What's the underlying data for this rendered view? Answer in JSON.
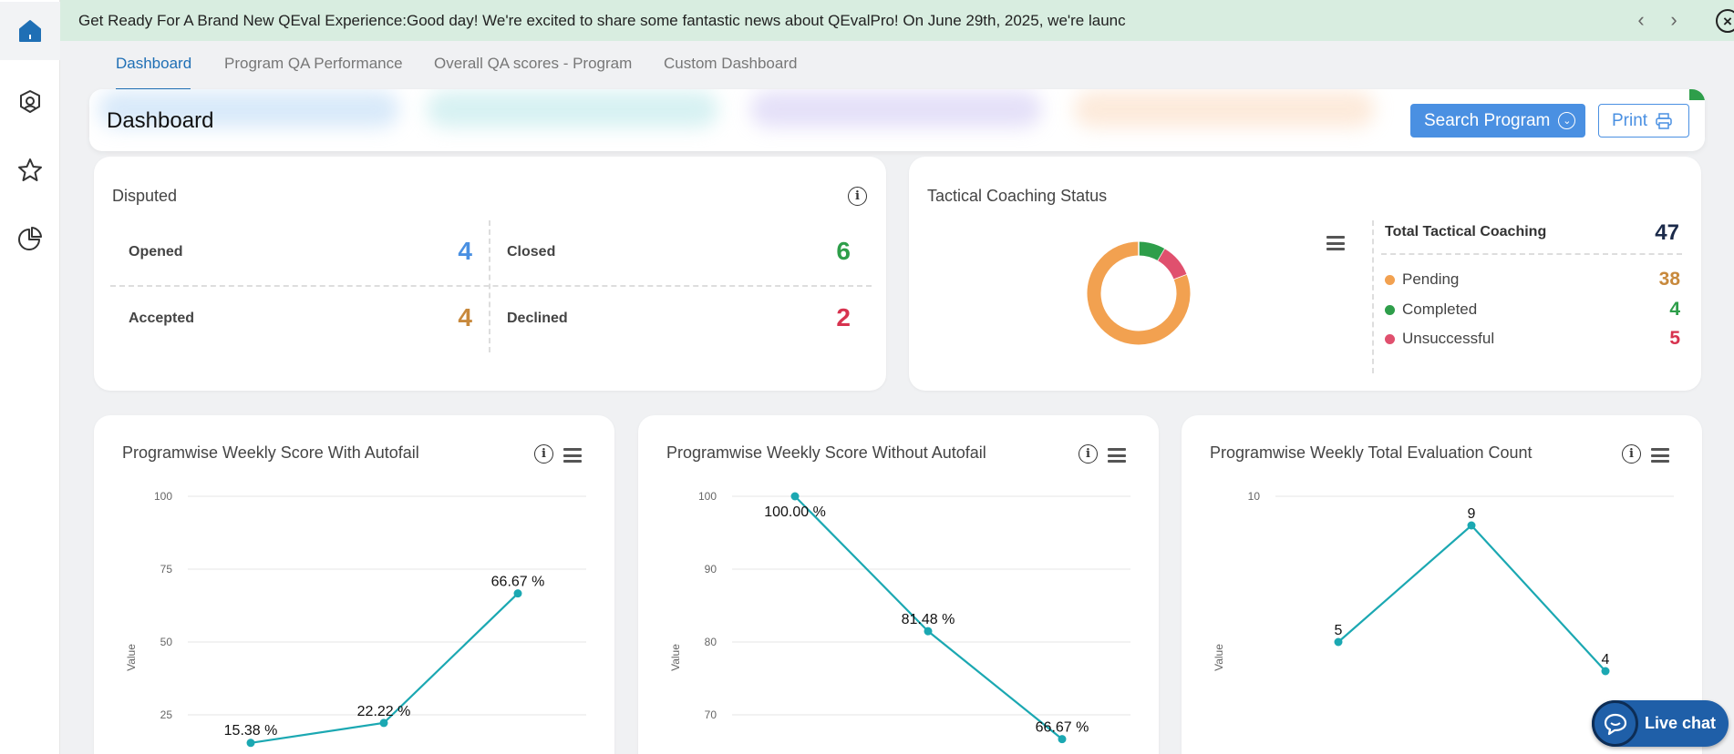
{
  "rail": {
    "items": [
      {
        "name": "home",
        "icon": "home-icon",
        "active": true
      },
      {
        "name": "settings",
        "icon": "gear-badge-icon"
      },
      {
        "name": "favorites",
        "icon": "star-icon"
      },
      {
        "name": "reports",
        "icon": "pie-chart-icon"
      }
    ]
  },
  "banner": {
    "text": "Get Ready For A Brand New QEval Experience:Good day! We're excited to share some fantastic news about QEvalPro! On June 29th, 2025, we're launc",
    "prev": "‹",
    "next": "›",
    "close": "×"
  },
  "tabs": [
    {
      "label": "Dashboard",
      "active": true
    },
    {
      "label": "Program QA Performance"
    },
    {
      "label": "Overall QA scores - Program"
    },
    {
      "label": "Custom Dashboard"
    }
  ],
  "header": {
    "title": "Dashboard",
    "search_label": "Search Program",
    "print_label": "Print"
  },
  "disputed": {
    "title": "Disputed",
    "opened_label": "Opened",
    "opened_value": "4",
    "closed_label": "Closed",
    "closed_value": "6",
    "accepted_label": "Accepted",
    "accepted_value": "4",
    "declined_label": "Declined",
    "declined_value": "2",
    "colors": {
      "opened": "#4a90e2",
      "closed": "#2e9e4a",
      "accepted": "#c8893c",
      "declined": "#d7334f"
    }
  },
  "coaching": {
    "title": "Tactical Coaching Status",
    "total_label": "Total Tactical Coaching",
    "total_value": "47",
    "items": [
      {
        "label": "Pending",
        "value": "38",
        "color": "#f2a150"
      },
      {
        "label": "Completed",
        "value": "4",
        "color": "#2e9e4a"
      },
      {
        "label": "Unsuccessful",
        "value": "5",
        "color": "#e0506e"
      }
    ]
  },
  "chart_data": [
    {
      "type": "line",
      "title": "Programwise Weekly Score With Autofail",
      "ylabel": "Value",
      "ylim": [
        0,
        100
      ],
      "yticks": [
        25,
        50,
        75,
        100
      ],
      "values": [
        15.38,
        22.22,
        66.67
      ],
      "data_labels": [
        "15.38 %",
        "22.22 %",
        "66.67 %"
      ],
      "color": "#1ba8b2"
    },
    {
      "type": "line",
      "title": "Programwise Weekly Score Without Autofail",
      "ylabel": "Value",
      "ylim": [
        60,
        100
      ],
      "yticks": [
        70,
        80,
        90,
        100
      ],
      "values": [
        100,
        81.48,
        66.67
      ],
      "data_labels": [
        "100.00 %",
        "81.48 %",
        "66.67 %"
      ],
      "color": "#1ba8b2"
    },
    {
      "type": "line",
      "title": "Programwise Weekly Total Evaluation Count",
      "ylabel": "Value",
      "ylim": [
        0,
        10
      ],
      "yticks": [
        10
      ],
      "values": [
        5,
        9,
        4
      ],
      "data_labels": [
        "5",
        "9",
        "4"
      ],
      "color": "#1ba8b2"
    }
  ],
  "livechat": {
    "label": "Live chat"
  }
}
